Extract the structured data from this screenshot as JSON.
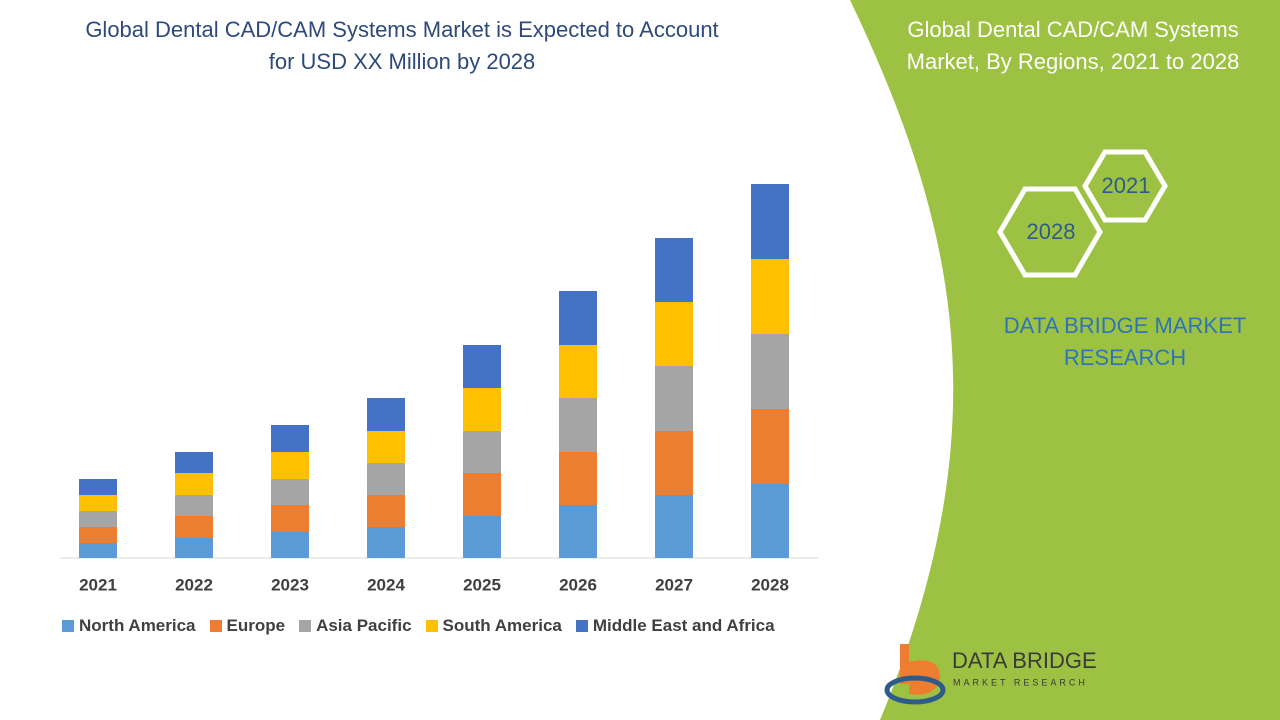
{
  "chart_data": {
    "type": "stacked_bar",
    "title": "Global Dental CAD/CAM Systems Market is Expected to Account for USD XX Million by 2028",
    "categories": [
      "2021",
      "2022",
      "2023",
      "2024",
      "2025",
      "2026",
      "2027",
      "2028"
    ],
    "series": [
      {
        "name": "North America",
        "color": "#5b9bd5",
        "values": [
          15,
          20,
          26,
          31,
          42,
          53,
          63,
          74
        ]
      },
      {
        "name": "Europe",
        "color": "#ed7d31",
        "values": [
          16,
          22,
          27,
          32,
          43,
          53,
          64,
          75
        ]
      },
      {
        "name": "Asia Pacific",
        "color": "#a5a5a5",
        "values": [
          16,
          21,
          26,
          32,
          42,
          54,
          65,
          75
        ]
      },
      {
        "name": "South America",
        "color": "#ffc000",
        "values": [
          16,
          22,
          27,
          32,
          43,
          53,
          64,
          75
        ]
      },
      {
        "name": "Middle East and Africa",
        "color": "#4472c4",
        "values": [
          16,
          21,
          27,
          33,
          43,
          54,
          64,
          75
        ]
      }
    ],
    "ylim": [
      0,
      400
    ]
  },
  "side_panel": {
    "title": "Global Dental CAD/CAM Systems Market, By Regions, 2021 to 2028",
    "hexagons": [
      "2021",
      "2028"
    ],
    "brand": "DATA BRIDGE MARKET RESEARCH"
  },
  "logo": {
    "name": "DATA BRIDGE",
    "tagline": "MARKET RESEARCH"
  }
}
